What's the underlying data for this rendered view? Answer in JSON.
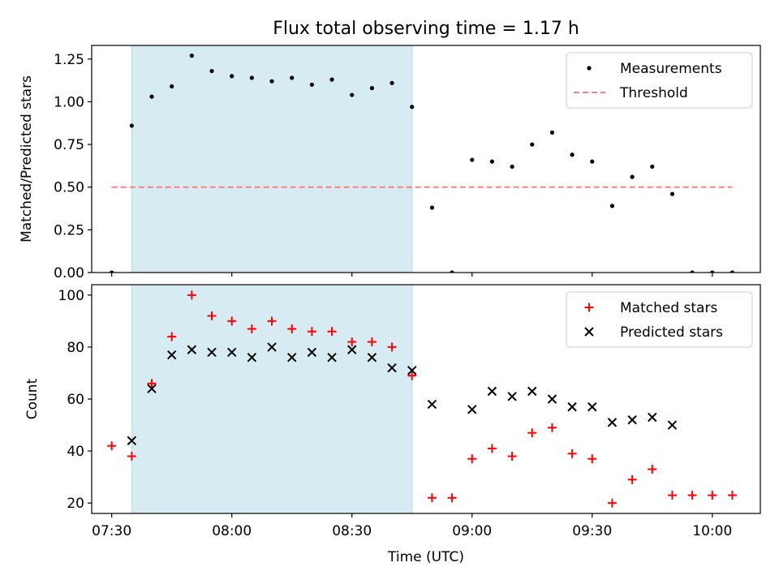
{
  "title": "Flux total observing time = 1.17 h",
  "xlabel": "Time (UTC)",
  "xticks": [
    "07:30",
    "08:00",
    "08:30",
    "09:00",
    "09:30",
    "10:00"
  ],
  "colors": {
    "shade": "#add8e6",
    "measurement": "#000000",
    "threshold": "#ff7f7f",
    "matched": "#ff0000",
    "predicted": "#000000"
  },
  "chart_data": [
    {
      "type": "scatter",
      "ylabel": "Matched/Predicted stars",
      "ylim": [
        0,
        1.33
      ],
      "yticks": [
        "0.00",
        "0.25",
        "0.50",
        "0.75",
        "1.00",
        "1.25"
      ],
      "xlim": [
        "07:25",
        "10:12"
      ],
      "legend_position": "top-right",
      "shaded_interval": [
        "07:35",
        "08:45"
      ],
      "threshold": {
        "name": "Threshold",
        "value": 0.5,
        "x_range": [
          "07:30",
          "10:05"
        ]
      },
      "series": [
        {
          "name": "Measurements",
          "marker": "dot",
          "x": [
            "07:30",
            "07:35",
            "07:40",
            "07:45",
            "07:50",
            "07:55",
            "08:00",
            "08:05",
            "08:10",
            "08:15",
            "08:20",
            "08:25",
            "08:30",
            "08:35",
            "08:40",
            "08:45",
            "08:50",
            "08:55",
            "09:00",
            "09:05",
            "09:10",
            "09:15",
            "09:20",
            "09:25",
            "09:30",
            "09:35",
            "09:40",
            "09:45",
            "09:50",
            "09:55",
            "10:00",
            "10:05"
          ],
          "y": [
            0.0,
            0.86,
            1.03,
            1.09,
            1.27,
            1.18,
            1.15,
            1.14,
            1.12,
            1.14,
            1.1,
            1.13,
            1.04,
            1.08,
            1.11,
            0.97,
            0.38,
            0.0,
            0.66,
            0.65,
            0.62,
            0.75,
            0.82,
            0.69,
            0.65,
            0.39,
            0.56,
            0.62,
            0.46,
            0.0,
            0.0,
            0.0
          ]
        }
      ]
    },
    {
      "type": "scatter",
      "ylabel": "Count",
      "ylim": [
        16,
        104
      ],
      "yticks": [
        "20",
        "40",
        "60",
        "80",
        "100"
      ],
      "xlim": [
        "07:25",
        "10:12"
      ],
      "legend_position": "top-right",
      "shaded_interval": [
        "07:35",
        "08:45"
      ],
      "series": [
        {
          "name": "Matched stars",
          "marker": "plus",
          "x": [
            "07:30",
            "07:35",
            "07:40",
            "07:45",
            "07:50",
            "07:55",
            "08:00",
            "08:05",
            "08:10",
            "08:15",
            "08:20",
            "08:25",
            "08:30",
            "08:35",
            "08:40",
            "08:45",
            "08:50",
            "08:55",
            "09:00",
            "09:05",
            "09:10",
            "09:15",
            "09:20",
            "09:25",
            "09:30",
            "09:35",
            "09:40",
            "09:45",
            "09:50",
            "09:55",
            "10:00",
            "10:05"
          ],
          "y": [
            42,
            38,
            66,
            84,
            100,
            92,
            90,
            87,
            90,
            87,
            86,
            86,
            82,
            82,
            80,
            69,
            22,
            22,
            37,
            41,
            38,
            47,
            49,
            39,
            37,
            20,
            29,
            33,
            23,
            23,
            23,
            23
          ]
        },
        {
          "name": "Predicted stars",
          "marker": "x",
          "x": [
            "07:35",
            "07:40",
            "07:45",
            "07:50",
            "07:55",
            "08:00",
            "08:05",
            "08:10",
            "08:15",
            "08:20",
            "08:25",
            "08:30",
            "08:35",
            "08:40",
            "08:45",
            "08:50",
            "09:00",
            "09:05",
            "09:10",
            "09:15",
            "09:20",
            "09:25",
            "09:30",
            "09:35",
            "09:40",
            "09:45",
            "09:50"
          ],
          "y": [
            44,
            64,
            77,
            79,
            78,
            78,
            76,
            80,
            76,
            78,
            76,
            79,
            76,
            72,
            71,
            58,
            56,
            63,
            61,
            63,
            60,
            57,
            57,
            51,
            52,
            53,
            50
          ]
        }
      ]
    }
  ]
}
